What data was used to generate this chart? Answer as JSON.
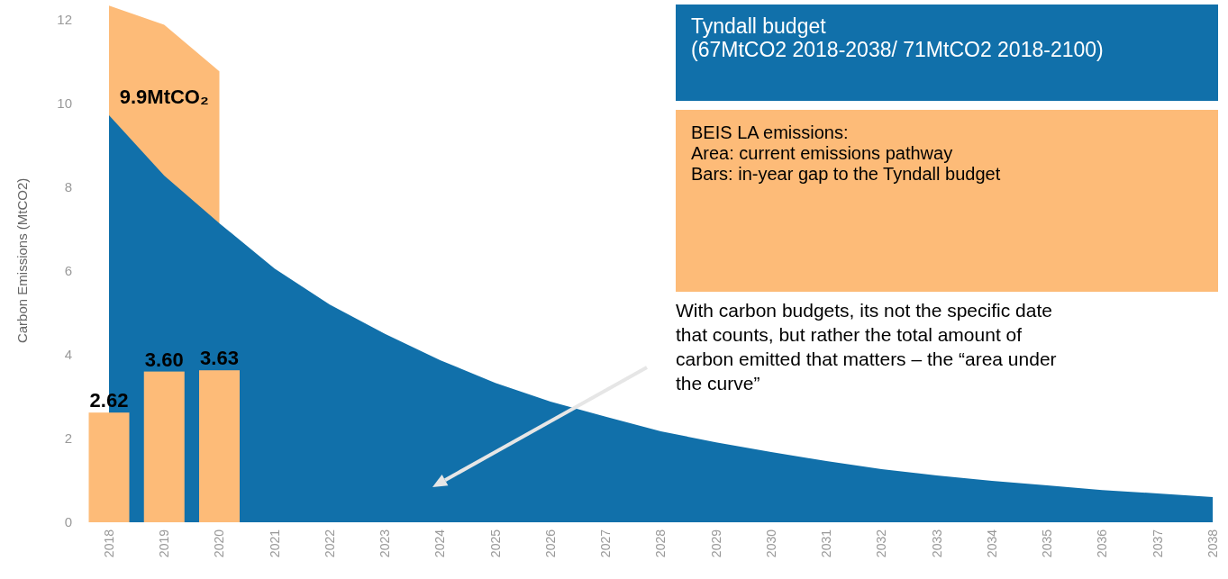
{
  "chart_data": {
    "type": "area",
    "ylabel": "Carbon Emissions (MtCO2)",
    "categories": [
      "2018",
      "2019",
      "2020",
      "2021",
      "2022",
      "2023",
      "2024",
      "2025",
      "2026",
      "2027",
      "2028",
      "2029",
      "2030",
      "2031",
      "2032",
      "2033",
      "2034",
      "2035",
      "2036",
      "2037",
      "2038"
    ],
    "ylim": [
      0,
      12.5
    ],
    "yticks": [
      0,
      2,
      4,
      6,
      8,
      10,
      12
    ],
    "grid": false,
    "series": [
      {
        "color": "#1170aa",
        "values": [
          9.72,
          8.28,
          7.14,
          6.06,
          5.2,
          4.5,
          3.87,
          3.33,
          2.88,
          2.52,
          2.17,
          1.91,
          1.68,
          1.46,
          1.27,
          1.12,
          0.99,
          0.88,
          0.77,
          0.69,
          0.6
        ]
      },
      {
        "color": "#fdbb78",
        "values": [
          12.34,
          11.88,
          10.77,
          null,
          null,
          null,
          null,
          null,
          null,
          null,
          null,
          null,
          null,
          null,
          null,
          null,
          null,
          null,
          null,
          null,
          null
        ]
      },
      {
        "type": "bar",
        "color": "#fdbb78",
        "values": [
          2.62,
          3.6,
          3.63,
          null,
          null,
          null,
          null,
          null,
          null,
          null,
          null,
          null,
          null,
          null,
          null,
          null,
          null,
          null,
          null,
          null,
          null
        ],
        "value_labels": [
          "2.62",
          "3.60",
          "3.63",
          null,
          null,
          null,
          null,
          null,
          null,
          null,
          null,
          null,
          null,
          null,
          null,
          null,
          null,
          null,
          null,
          null,
          null
        ]
      }
    ],
    "annotations": [
      "Tyndall budget\n(67MtCO2 2018-2038/ 71MtCO2 2018-2100)",
      "BEIS LA emissions:\nArea: current emissions pathway\nBars: in-year gap to the Tyndall budget",
      "9.9MtCO₂",
      "With carbon budgets, its not the specific date\nthat counts, but rather the total amount of\ncarbon emitted that matters – the “area under\nthe curve”"
    ]
  }
}
